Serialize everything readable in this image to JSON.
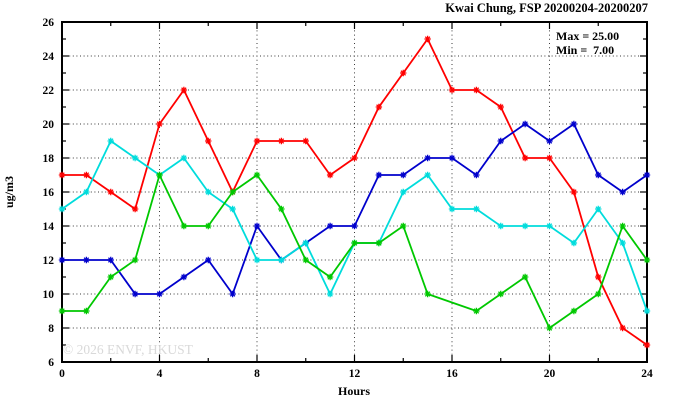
{
  "chart": {
    "title": "Kwai Chung, FSP 20200204-20200207",
    "stats": {
      "max_label": "Max = 25.00",
      "min_label": "Min =  7.00"
    },
    "xlabel": "Hours",
    "ylabel": "ug/m3",
    "watermark": "© 2026 ENVF, HKUST"
  },
  "chart_data": {
    "type": "line",
    "title": "Kwai Chung, FSP 20200204-20200207",
    "xlabel": "Hours",
    "ylabel": "ug/m3",
    "xlim": [
      0,
      24
    ],
    "ylim": [
      6,
      26
    ],
    "x_major_ticks": [
      0,
      4,
      8,
      12,
      16,
      20,
      24
    ],
    "x_minor_step": 2,
    "y_major_ticks": [
      6,
      8,
      10,
      12,
      14,
      16,
      18,
      20,
      22,
      24,
      26
    ],
    "y_minor_step": 1,
    "grid_x": [
      4,
      8,
      12,
      16,
      20
    ],
    "grid_y": [
      8,
      10,
      12,
      14,
      16,
      18,
      20,
      22,
      24
    ],
    "grid": true,
    "legend_position": "none",
    "annotations": [
      "Max = 25.00",
      "Min =  7.00"
    ],
    "x": [
      0,
      1,
      2,
      3,
      4,
      5,
      6,
      7,
      8,
      9,
      10,
      11,
      12,
      13,
      14,
      15,
      16,
      17,
      18,
      19,
      20,
      21,
      22,
      23,
      24
    ],
    "series": [
      {
        "name": "red",
        "color": "#ff0000",
        "values": [
          17,
          17,
          16,
          15,
          20,
          22,
          19,
          16,
          19,
          19,
          19,
          17,
          18,
          21,
          23,
          25,
          22,
          22,
          21,
          18,
          18,
          16,
          11,
          8,
          7
        ]
      },
      {
        "name": "blue",
        "color": "#0000cc",
        "values": [
          12,
          12,
          12,
          10,
          10,
          11,
          12,
          10,
          14,
          12,
          13,
          14,
          14,
          17,
          17,
          18,
          18,
          17,
          19,
          20,
          19,
          20,
          17,
          16,
          17
        ]
      },
      {
        "name": "cyan",
        "color": "#00dcdc",
        "values": [
          15,
          16,
          19,
          18,
          17,
          18,
          16,
          15,
          12,
          12,
          13,
          10,
          13,
          13,
          16,
          17,
          15,
          15,
          14,
          14,
          14,
          13,
          15,
          13,
          9
        ]
      },
      {
        "name": "green",
        "color": "#00c800",
        "values": [
          9,
          9,
          11,
          12,
          17,
          14,
          14,
          16,
          17,
          15,
          12,
          11,
          13,
          13,
          14,
          10,
          null,
          9,
          10,
          11,
          8,
          9,
          10,
          14,
          12
        ]
      }
    ]
  }
}
